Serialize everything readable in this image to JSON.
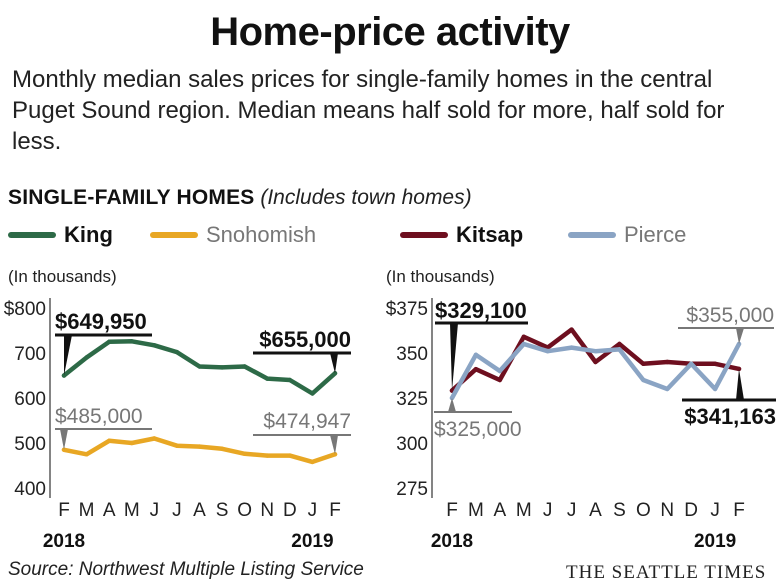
{
  "header": {
    "title": "Home-price activity",
    "subtitle": "Monthly median sales prices for single-family homes in the central Puget Sound region. Median means half sold for more, half sold for less.",
    "section_label": "SINGLE-FAMILY HOMES",
    "section_note": "(Includes town homes)"
  },
  "legend": [
    {
      "name": "King",
      "color": "#2d6a47"
    },
    {
      "name": "Snohomish",
      "color": "#e8a724"
    },
    {
      "name": "Kitsap",
      "color": "#6e0f1f"
    },
    {
      "name": "Pierce",
      "color": "#8aa4c4"
    }
  ],
  "footer": {
    "source": "Source: Northwest Multiple Listing Service",
    "credit": "THE SEATTLE TIMES"
  },
  "chart_data": [
    {
      "type": "line",
      "unit_label": "(In thousands)",
      "x": [
        "F",
        "M",
        "A",
        "M",
        "J",
        "J",
        "A",
        "S",
        "O",
        "N",
        "D",
        "J",
        "F"
      ],
      "year_labels": [
        "2018",
        "2019"
      ],
      "yticks": [
        "$800",
        "700",
        "600",
        "500",
        "400"
      ],
      "ylim": [
        400,
        800
      ],
      "grid": false,
      "series": [
        {
          "name": "King",
          "color": "#2d6a47",
          "values": [
            649.95,
            690,
            725,
            726,
            717,
            702,
            670,
            668,
            670,
            643,
            640,
            610,
            655
          ]
        },
        {
          "name": "Snohomish",
          "color": "#e8a724",
          "values": [
            485,
            475,
            505,
            500,
            510,
            494,
            492,
            487,
            476,
            472,
            472,
            458,
            474.947
          ]
        }
      ],
      "annotations": [
        {
          "text": "$649,950",
          "series": "King",
          "index": 0,
          "style": "bold"
        },
        {
          "text": "$655,000",
          "series": "King",
          "index": 12,
          "style": "bold"
        },
        {
          "text": "$485,000",
          "series": "Snohomish",
          "index": 0,
          "style": "gray"
        },
        {
          "text": "$474,947",
          "series": "Snohomish",
          "index": 12,
          "style": "gray"
        }
      ]
    },
    {
      "type": "line",
      "unit_label": "(In thousands)",
      "x": [
        "F",
        "M",
        "A",
        "M",
        "J",
        "J",
        "A",
        "S",
        "O",
        "N",
        "D",
        "J",
        "F"
      ],
      "year_labels": [
        "2018",
        "2019"
      ],
      "yticks": [
        "$375",
        "350",
        "325",
        "300",
        "275"
      ],
      "ylim": [
        275,
        375
      ],
      "grid": false,
      "series": [
        {
          "name": "Kitsap",
          "color": "#6e0f1f",
          "values": [
            329.1,
            341,
            335,
            359,
            353,
            363,
            345,
            355,
            344,
            345,
            344,
            344,
            341.163
          ]
        },
        {
          "name": "Pierce",
          "color": "#8aa4c4",
          "values": [
            325,
            349,
            340,
            355,
            351,
            353,
            351,
            352,
            335,
            330,
            344,
            330,
            355
          ]
        }
      ],
      "annotations": [
        {
          "text": "$329,100",
          "series": "Kitsap",
          "index": 0,
          "style": "bold"
        },
        {
          "text": "$325,000",
          "series": "Pierce",
          "index": 0,
          "style": "gray"
        },
        {
          "text": "$355,000",
          "series": "Pierce",
          "index": 12,
          "style": "gray"
        },
        {
          "text": "$341,163",
          "series": "Kitsap",
          "index": 12,
          "style": "bold"
        }
      ]
    }
  ]
}
